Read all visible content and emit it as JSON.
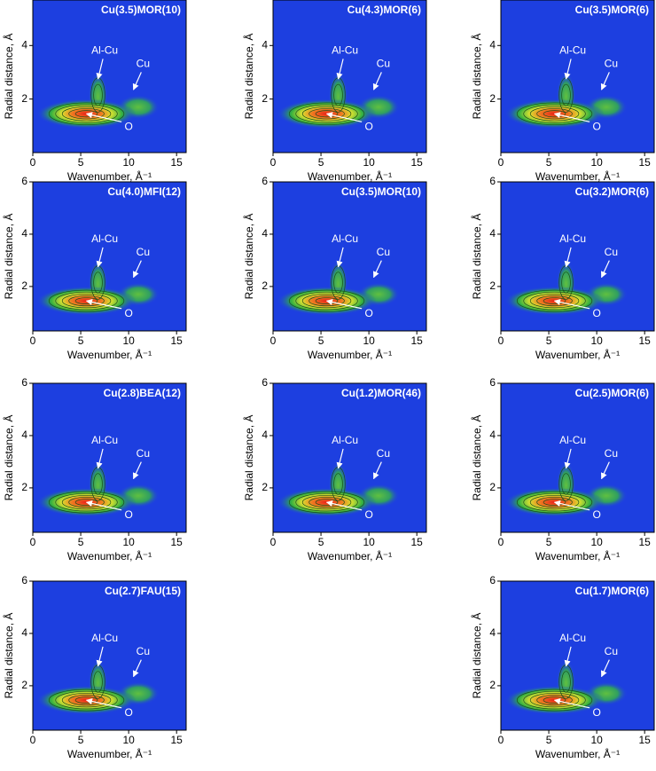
{
  "chart_data": [
    {
      "type": "heatmap",
      "title": "Cu(3.5)MOR(10)",
      "xlabel": "Wavenumber, Å⁻¹",
      "ylabel": "Radial distance, Å",
      "xlim": [
        0,
        16
      ],
      "ylim": [
        0,
        5.7
      ],
      "xticks": [
        0,
        5,
        10,
        15
      ],
      "yticks": [
        2,
        4
      ],
      "annotations": [
        "Al-Cu",
        "Cu",
        "O"
      ]
    },
    {
      "type": "heatmap",
      "title": "Cu(4.3)MOR(6)",
      "xlabel": "Wavenumber, Å⁻¹",
      "ylabel": "Radial distance, Å",
      "xlim": [
        0,
        16
      ],
      "ylim": [
        0,
        5.7
      ],
      "xticks": [
        0,
        5,
        10,
        15
      ],
      "yticks": [
        2,
        4
      ],
      "annotations": [
        "Al-Cu",
        "Cu",
        "O"
      ]
    },
    {
      "type": "heatmap",
      "title": "Cu(3.5)MOR(6)",
      "xlabel": "Wavenumber, Å⁻¹",
      "ylabel": "Radial distance, Å",
      "xlim": [
        0,
        16
      ],
      "ylim": [
        0,
        5.7
      ],
      "xticks": [
        0,
        5,
        10,
        15
      ],
      "yticks": [
        2,
        4
      ],
      "annotations": [
        "Al-Cu",
        "Cu",
        "O"
      ]
    },
    {
      "type": "heatmap",
      "title": "Cu(4.0)MFI(12)",
      "xlabel": "Wavenumber, Å⁻¹",
      "ylabel": "Radial distance, Å",
      "xlim": [
        0,
        16
      ],
      "ylim": [
        0.3,
        6
      ],
      "xticks": [
        0,
        5,
        10,
        15
      ],
      "yticks": [
        2,
        4,
        6
      ],
      "annotations": [
        "Al-Cu",
        "Cu",
        "O"
      ]
    },
    {
      "type": "heatmap",
      "title": "Cu(3.5)MOR(10)",
      "xlabel": "Wavenumber, Å⁻¹",
      "ylabel": "Radial distance, Å",
      "xlim": [
        0,
        16
      ],
      "ylim": [
        0.3,
        6
      ],
      "xticks": [
        0,
        5,
        10,
        15
      ],
      "yticks": [
        2,
        4,
        6
      ],
      "annotations": [
        "Al-Cu",
        "Cu",
        "O"
      ]
    },
    {
      "type": "heatmap",
      "title": "Cu(3.2)MOR(6)",
      "xlabel": "Wavenumber, Å⁻¹",
      "ylabel": "Radial distance, Å",
      "xlim": [
        0,
        16
      ],
      "ylim": [
        0.3,
        6
      ],
      "xticks": [
        0,
        5,
        10,
        15
      ],
      "yticks": [
        2,
        4,
        6
      ],
      "annotations": [
        "Al-Cu",
        "Cu",
        "O"
      ]
    },
    {
      "type": "heatmap",
      "title": "Cu(2.8)BEA(12)",
      "xlabel": "Wavenumber, Å⁻¹",
      "ylabel": "Radial distance, Å",
      "xlim": [
        0,
        16
      ],
      "ylim": [
        0.3,
        6
      ],
      "xticks": [
        0,
        5,
        10,
        15
      ],
      "yticks": [
        2,
        4,
        6
      ],
      "annotations": [
        "Al-Cu",
        "Cu",
        "O"
      ]
    },
    {
      "type": "heatmap",
      "title": "Cu(1.2)MOR(46)",
      "xlabel": "Wavenumber, Å⁻¹",
      "ylabel": "Radial distance, Å",
      "xlim": [
        0,
        16
      ],
      "ylim": [
        0.3,
        6
      ],
      "xticks": [
        0,
        5,
        10,
        15
      ],
      "yticks": [
        2,
        4,
        6
      ],
      "annotations": [
        "Al-Cu",
        "Cu",
        "O"
      ]
    },
    {
      "type": "heatmap",
      "title": "Cu(2.5)MOR(6)",
      "xlabel": "Wavenumber, Å⁻¹",
      "ylabel": "Radial distance, Å",
      "xlim": [
        0,
        16
      ],
      "ylim": [
        0.3,
        6
      ],
      "xticks": [
        0,
        5,
        10,
        15
      ],
      "yticks": [
        2,
        4,
        6
      ],
      "annotations": [
        "Al-Cu",
        "Cu",
        "O"
      ]
    },
    {
      "type": "heatmap",
      "title": "Cu(2.7)FAU(15)",
      "xlabel": "Wavenumber, Å⁻¹",
      "ylabel": "Radial distance, Å",
      "xlim": [
        0,
        16
      ],
      "ylim": [
        0.3,
        6
      ],
      "xticks": [
        0,
        5,
        10,
        15
      ],
      "yticks": [
        2,
        4,
        6
      ],
      "annotations": [
        "Al-Cu",
        "Cu",
        "O"
      ]
    },
    {
      "type": "heatmap",
      "title": "Cu(1.7)MOR(6)",
      "xlabel": "Wavenumber, Å⁻¹",
      "ylabel": "Radial distance, Å",
      "xlim": [
        0,
        16
      ],
      "ylim": [
        0.3,
        6
      ],
      "xticks": [
        0,
        5,
        10,
        15
      ],
      "yticks": [
        2,
        4,
        6
      ],
      "annotations": [
        "Al-Cu",
        "Cu",
        "O"
      ]
    }
  ]
}
